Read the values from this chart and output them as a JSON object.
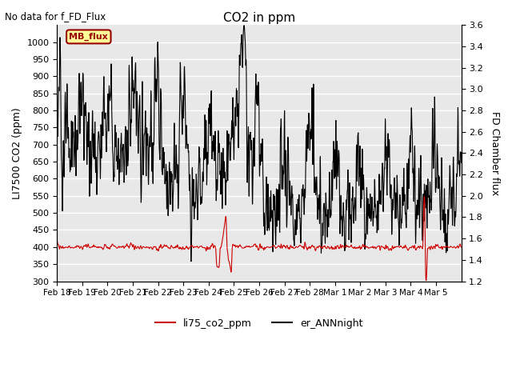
{
  "title": "CO2 in ppm",
  "subtitle": "No data for f_FD_Flux",
  "ylabel_left": "LI7500 CO2 (ppm)",
  "ylabel_right": "FD Chamber flux",
  "ylim_left": [
    300,
    1050
  ],
  "ylim_right": [
    1.2,
    3.6
  ],
  "yticks_left": [
    300,
    350,
    400,
    450,
    500,
    550,
    600,
    650,
    700,
    750,
    800,
    850,
    900,
    950,
    1000
  ],
  "yticks_right": [
    1.2,
    1.4,
    1.6,
    1.8,
    2.0,
    2.2,
    2.4,
    2.6,
    2.8,
    3.0,
    3.2,
    3.4,
    3.6
  ],
  "line1_color": "#cc0000",
  "line2_color": "#000000",
  "legend_labels": [
    "li75_co2_ppm",
    "er_ANNnight"
  ],
  "mb_flux_box_color": "#ffff99",
  "mb_flux_text_color": "#990000",
  "background_color": "#e8e8e8",
  "grid_color": "#ffffff",
  "xlabel_dates": [
    "Feb 18",
    "Feb 19",
    "Feb 20",
    "Feb 21",
    "Feb 22",
    "Feb 23",
    "Feb 24",
    "Feb 25",
    "Feb 26",
    "Feb 27",
    "Feb 28",
    "Mar 1",
    "Mar 2",
    "Mar 3",
    "Mar 4",
    "Mar 5"
  ]
}
